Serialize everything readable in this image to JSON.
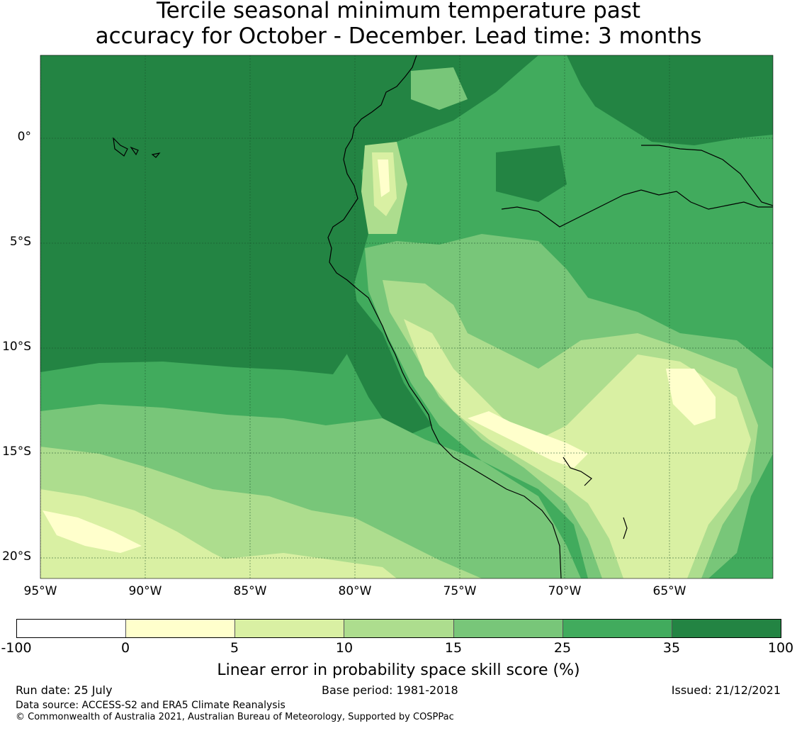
{
  "title": {
    "line1": "Tercile seasonal minimum temperature past",
    "line2": "accuracy for October - December. Lead time: 3 months"
  },
  "map": {
    "lat_labels": [
      "0°",
      "5°S",
      "10°S",
      "15°S",
      "20°S"
    ],
    "lon_labels": [
      "95°W",
      "90°W",
      "85°W",
      "80°W",
      "75°W",
      "70°W",
      "65°W"
    ],
    "coastline_color": "#000000",
    "gridline_color": "#1a4d2a"
  },
  "colorbar": {
    "ticks": [
      "-100",
      "0",
      "5",
      "10",
      "15",
      "25",
      "35",
      "100"
    ],
    "colors": [
      "#ffffff",
      "#ffffcc",
      "#d9f0a3",
      "#addd8e",
      "#78c679",
      "#41ab5d",
      "#238443"
    ],
    "label": "Linear error in probability space skill score (%)"
  },
  "footer": {
    "run_date": "Run date: 25 July",
    "base_period": "Base period: 1981-2018",
    "issued": "Issued: 21/12/2021",
    "data_source": "Data source: ACCESS-S2 and ERA5 Climate Reanalysis",
    "copyright": "© Commonwealth of Australia 2021, Australian Bureau of Meteorology, Supported by COSPPac"
  }
}
